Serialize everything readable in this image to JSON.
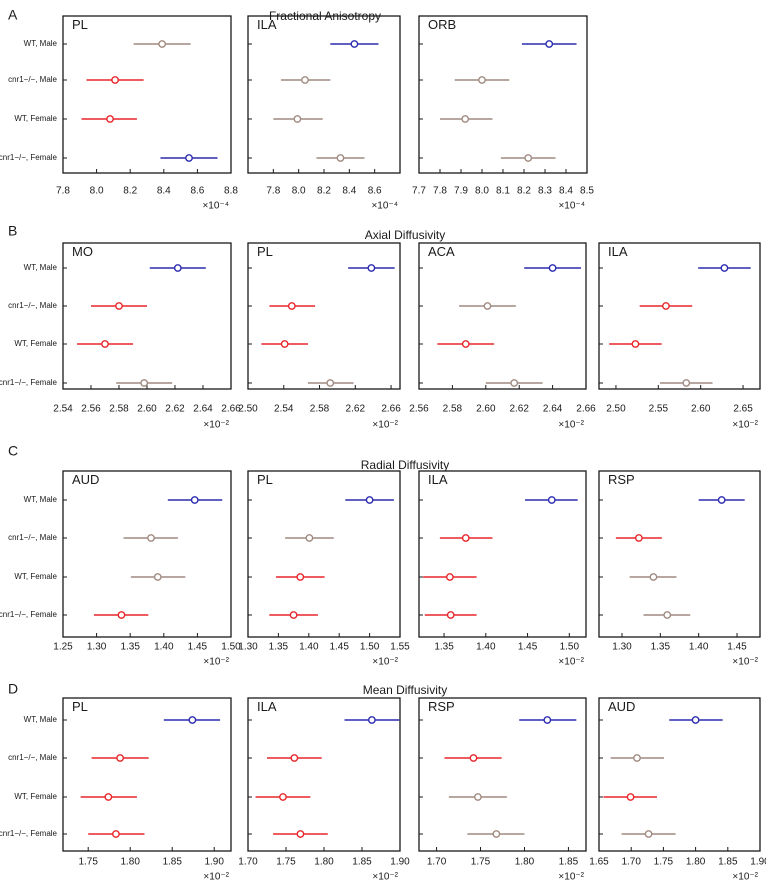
{
  "chart_data": [
    {
      "type": "scatter",
      "subtype": "forest",
      "section_letter": "A",
      "title": "Fractional Anisotropy",
      "multiplier": "×10⁻⁴",
      "rows": [
        "WT, Male",
        "cnr1−/−, Male",
        "WT, Female",
        "cnr1−/−, Female"
      ],
      "panels": [
        {
          "region": "PL",
          "xlim": [
            7.8,
            8.8
          ],
          "xticks": [
            "7.8",
            "8.0",
            "8.2",
            "8.4",
            "8.6",
            "8.8"
          ],
          "points": [
            {
              "mean": 8.39,
              "low": 8.22,
              "high": 8.56,
              "color": "#a08a80"
            },
            {
              "mean": 8.11,
              "low": 7.94,
              "high": 8.28,
              "color": "#e8262a"
            },
            {
              "mean": 8.08,
              "low": 7.91,
              "high": 8.24,
              "color": "#e8262a"
            },
            {
              "mean": 8.55,
              "low": 8.38,
              "high": 8.72,
              "color": "#2b2bb0"
            }
          ]
        },
        {
          "region": "ILA",
          "xlim": [
            7.6,
            8.8
          ],
          "xticks": [
            "7.8",
            "8.0",
            "8.2",
            "8.4",
            "8.6"
          ],
          "points": [
            {
              "mean": 8.44,
              "low": 8.25,
              "high": 8.63,
              "color": "#2b2bb0"
            },
            {
              "mean": 8.05,
              "low": 7.86,
              "high": 8.25,
              "color": "#a08a80"
            },
            {
              "mean": 7.99,
              "low": 7.8,
              "high": 8.19,
              "color": "#a08a80"
            },
            {
              "mean": 8.33,
              "low": 8.14,
              "high": 8.52,
              "color": "#a08a80"
            }
          ]
        },
        {
          "region": "ORB",
          "xlim": [
            7.7,
            8.5
          ],
          "xticks": [
            "7.7",
            "7.8",
            "7.9",
            "8.0",
            "8.1",
            "8.2",
            "8.3",
            "8.4",
            "8.5"
          ],
          "points": [
            {
              "mean": 8.32,
              "low": 8.19,
              "high": 8.45,
              "color": "#2b2bb0"
            },
            {
              "mean": 8.0,
              "low": 7.87,
              "high": 8.13,
              "color": "#a08a80"
            },
            {
              "mean": 7.92,
              "low": 7.8,
              "high": 8.05,
              "color": "#a08a80"
            },
            {
              "mean": 8.22,
              "low": 8.09,
              "high": 8.35,
              "color": "#a08a80"
            }
          ]
        }
      ]
    },
    {
      "type": "scatter",
      "subtype": "forest",
      "section_letter": "B",
      "title": "Axial Diffusivity",
      "multiplier": "×10⁻²",
      "rows": [
        "WT, Male",
        "cnr1−/−, Male",
        "WT, Female",
        "cnr1−/−, Female"
      ],
      "panels": [
        {
          "region": "MO",
          "xlim": [
            2.54,
            2.66
          ],
          "xticks": [
            "2.54",
            "2.56",
            "2.58",
            "2.60",
            "2.62",
            "2.64",
            "2.66"
          ],
          "points": [
            {
              "mean": 2.622,
              "low": 2.602,
              "high": 2.642,
              "color": "#2b2bb0"
            },
            {
              "mean": 2.58,
              "low": 2.56,
              "high": 2.6,
              "color": "#e8262a"
            },
            {
              "mean": 2.57,
              "low": 2.55,
              "high": 2.59,
              "color": "#e8262a"
            },
            {
              "mean": 2.598,
              "low": 2.578,
              "high": 2.618,
              "color": "#a08a80"
            }
          ]
        },
        {
          "region": "PL",
          "xlim": [
            2.5,
            2.67
          ],
          "xticks": [
            "2.50",
            "2.54",
            "2.58",
            "2.62",
            "2.66"
          ],
          "points": [
            {
              "mean": 2.638,
              "low": 2.612,
              "high": 2.664,
              "color": "#2b2bb0"
            },
            {
              "mean": 2.549,
              "low": 2.524,
              "high": 2.575,
              "color": "#e8262a"
            },
            {
              "mean": 2.541,
              "low": 2.515,
              "high": 2.567,
              "color": "#e8262a"
            },
            {
              "mean": 2.592,
              "low": 2.567,
              "high": 2.618,
              "color": "#a08a80"
            }
          ]
        },
        {
          "region": "ACA",
          "xlim": [
            2.56,
            2.66
          ],
          "xticks": [
            "2.56",
            "2.58",
            "2.60",
            "2.62",
            "2.64",
            "2.66"
          ],
          "points": [
            {
              "mean": 2.64,
              "low": 2.623,
              "high": 2.657,
              "color": "#2b2bb0"
            },
            {
              "mean": 2.601,
              "low": 2.584,
              "high": 2.618,
              "color": "#a08a80"
            },
            {
              "mean": 2.588,
              "low": 2.571,
              "high": 2.605,
              "color": "#e8262a"
            },
            {
              "mean": 2.617,
              "low": 2.6,
              "high": 2.634,
              "color": "#a08a80"
            }
          ]
        },
        {
          "region": "ILA",
          "xlim": [
            2.48,
            2.67
          ],
          "xticks": [
            "2.50",
            "2.55",
            "2.60",
            "2.65"
          ],
          "points": [
            {
              "mean": 2.628,
              "low": 2.597,
              "high": 2.659,
              "color": "#2b2bb0"
            },
            {
              "mean": 2.559,
              "low": 2.528,
              "high": 2.59,
              "color": "#e8262a"
            },
            {
              "mean": 2.523,
              "low": 2.492,
              "high": 2.554,
              "color": "#e8262a"
            },
            {
              "mean": 2.583,
              "low": 2.552,
              "high": 2.614,
              "color": "#a08a80"
            }
          ]
        }
      ]
    },
    {
      "type": "scatter",
      "subtype": "forest",
      "section_letter": "C",
      "title": "Radial Diffusivity",
      "multiplier": "×10⁻²",
      "rows": [
        "WT, Male",
        "cnr1−/−, Male",
        "WT, Female",
        "cnr1−/−, Female"
      ],
      "panels": [
        {
          "region": "AUD",
          "xlim": [
            1.25,
            1.5
          ],
          "xticks": [
            "1.25",
            "1.30",
            "1.35",
            "1.40",
            "1.45",
            "1.50"
          ],
          "points": [
            {
              "mean": 1.446,
              "low": 1.406,
              "high": 1.487,
              "color": "#2b2bb0"
            },
            {
              "mean": 1.381,
              "low": 1.34,
              "high": 1.421,
              "color": "#a08a80"
            },
            {
              "mean": 1.391,
              "low": 1.351,
              "high": 1.432,
              "color": "#a08a80"
            },
            {
              "mean": 1.337,
              "low": 1.296,
              "high": 1.377,
              "color": "#e8262a"
            }
          ]
        },
        {
          "region": "PL",
          "xlim": [
            1.3,
            1.55
          ],
          "xticks": [
            "1.30",
            "1.35",
            "1.40",
            "1.45",
            "1.50",
            "1.55"
          ],
          "points": [
            {
              "mean": 1.5,
              "low": 1.46,
              "high": 1.54,
              "color": "#2b2bb0"
            },
            {
              "mean": 1.401,
              "low": 1.361,
              "high": 1.441,
              "color": "#a08a80"
            },
            {
              "mean": 1.386,
              "low": 1.346,
              "high": 1.426,
              "color": "#e8262a"
            },
            {
              "mean": 1.375,
              "low": 1.335,
              "high": 1.415,
              "color": "#e8262a"
            }
          ]
        },
        {
          "region": "ILA",
          "xlim": [
            1.32,
            1.52
          ],
          "xticks": [
            "1.35",
            "1.40",
            "1.45",
            "1.50"
          ],
          "points": [
            {
              "mean": 1.479,
              "low": 1.447,
              "high": 1.51,
              "color": "#2b2bb0"
            },
            {
              "mean": 1.376,
              "low": 1.345,
              "high": 1.408,
              "color": "#e8262a"
            },
            {
              "mean": 1.357,
              "low": 1.325,
              "high": 1.389,
              "color": "#e8262a"
            },
            {
              "mean": 1.358,
              "low": 1.327,
              "high": 1.389,
              "color": "#e8262a"
            }
          ]
        },
        {
          "region": "RSP",
          "xlim": [
            1.27,
            1.48
          ],
          "xticks": [
            "1.30",
            "1.35",
            "1.40",
            "1.45"
          ],
          "points": [
            {
              "mean": 1.43,
              "low": 1.4,
              "high": 1.46,
              "color": "#2b2bb0"
            },
            {
              "mean": 1.322,
              "low": 1.292,
              "high": 1.352,
              "color": "#e8262a"
            },
            {
              "mean": 1.341,
              "low": 1.31,
              "high": 1.371,
              "color": "#a08a80"
            },
            {
              "mean": 1.359,
              "low": 1.328,
              "high": 1.389,
              "color": "#a08a80"
            }
          ]
        }
      ]
    },
    {
      "type": "scatter",
      "subtype": "forest",
      "section_letter": "D",
      "title": "Mean Diffusivity",
      "multiplier": "×10⁻²",
      "rows": [
        "WT, Male",
        "cnr1−/−, Male",
        "WT, Female",
        "cnr1−/−, Female"
      ],
      "panels": [
        {
          "region": "PL",
          "xlim": [
            1.72,
            1.92
          ],
          "xticks": [
            "1.75",
            "1.80",
            "1.85",
            "1.90"
          ],
          "points": [
            {
              "mean": 1.874,
              "low": 1.84,
              "high": 1.907,
              "color": "#2b2bb0"
            },
            {
              "mean": 1.788,
              "low": 1.754,
              "high": 1.822,
              "color": "#e8262a"
            },
            {
              "mean": 1.774,
              "low": 1.741,
              "high": 1.808,
              "color": "#e8262a"
            },
            {
              "mean": 1.783,
              "low": 1.75,
              "high": 1.817,
              "color": "#e8262a"
            }
          ]
        },
        {
          "region": "ILA",
          "xlim": [
            1.7,
            1.9
          ],
          "xticks": [
            "1.70",
            "1.75",
            "1.80",
            "1.85",
            "1.90"
          ],
          "points": [
            {
              "mean": 1.863,
              "low": 1.827,
              "high": 1.899,
              "color": "#2b2bb0"
            },
            {
              "mean": 1.761,
              "low": 1.725,
              "high": 1.797,
              "color": "#e8262a"
            },
            {
              "mean": 1.746,
              "low": 1.71,
              "high": 1.782,
              "color": "#e8262a"
            },
            {
              "mean": 1.769,
              "low": 1.733,
              "high": 1.805,
              "color": "#e8262a"
            }
          ]
        },
        {
          "region": "RSP",
          "xlim": [
            1.68,
            1.87
          ],
          "xticks": [
            "1.70",
            "1.75",
            "1.80",
            "1.85"
          ],
          "points": [
            {
              "mean": 1.826,
              "low": 1.794,
              "high": 1.859,
              "color": "#2b2bb0"
            },
            {
              "mean": 1.742,
              "low": 1.709,
              "high": 1.774,
              "color": "#e8262a"
            },
            {
              "mean": 1.747,
              "low": 1.714,
              "high": 1.78,
              "color": "#a08a80"
            },
            {
              "mean": 1.768,
              "low": 1.735,
              "high": 1.8,
              "color": "#a08a80"
            }
          ]
        },
        {
          "region": "AUD",
          "xlim": [
            1.65,
            1.9
          ],
          "xticks": [
            "1.65",
            "1.70",
            "1.75",
            "1.80",
            "1.85",
            "1.90"
          ],
          "points": [
            {
              "mean": 1.8,
              "low": 1.759,
              "high": 1.842,
              "color": "#2b2bb0"
            },
            {
              "mean": 1.709,
              "low": 1.668,
              "high": 1.751,
              "color": "#a08a80"
            },
            {
              "mean": 1.699,
              "low": 1.657,
              "high": 1.74,
              "color": "#e8262a"
            },
            {
              "mean": 1.727,
              "low": 1.685,
              "high": 1.769,
              "color": "#a08a80"
            }
          ]
        }
      ]
    }
  ]
}
